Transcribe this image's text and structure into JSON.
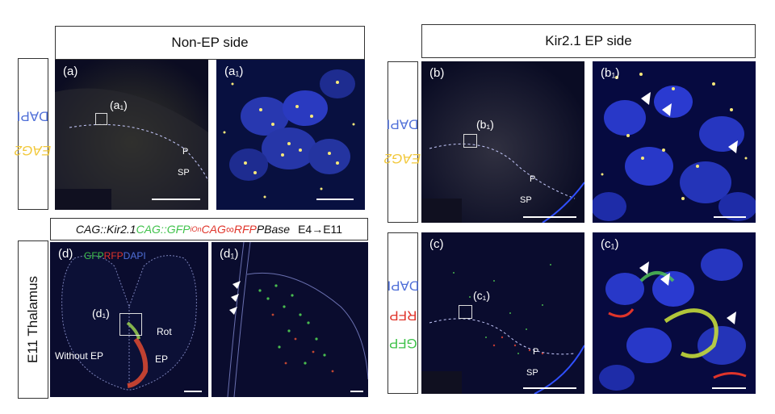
{
  "headers": {
    "non_ep": "Non-EP side",
    "kir_ep": "Kir2.1 EP side"
  },
  "row_labels": {
    "eag2_left": {
      "gene": "EAG2",
      "stain": "DAPI"
    },
    "eag2_right": {
      "gene": "EAG2",
      "stain": "DAPI"
    },
    "gfp_right": {
      "g": "GFP",
      "r": "RFP",
      "b": "DAPI"
    },
    "thalamus": "E11 Thalamus"
  },
  "genotype": {
    "part1": "CAG::Kir2.1",
    "part2": "CAG::GFP",
    "part2_sup": "iOn",
    "part3": "CAG∞RFP",
    "part4": "PBase",
    "stage": "E4→E11"
  },
  "panels": {
    "a": {
      "label": "(a)",
      "inset": "(a₁)",
      "region_p": "P",
      "region_sp": "SP"
    },
    "a1": {
      "label": "(a₁)"
    },
    "b": {
      "label": "(b)",
      "inset": "(b₁)",
      "region_p": "P",
      "region_sp": "SP"
    },
    "b1": {
      "label": "(b₁)"
    },
    "c": {
      "label": "(c)",
      "inset": "(c₁)",
      "region_p": "P",
      "region_sp": "SP"
    },
    "c1": {
      "label": "(c₁)"
    },
    "d": {
      "label": "(d)",
      "channels": {
        "g": "GFP",
        "r": "RFP",
        "b": "DAPI"
      },
      "inset": "(d₁)",
      "rot": "Rot",
      "ep": "EP",
      "without_ep": "Without EP"
    },
    "d1": {
      "label": "(d₁)"
    }
  },
  "colors": {
    "eag2_signal": "#f2c83a",
    "dapi": "#3b4fd6",
    "gfp": "#3fc24a",
    "rfp": "#e0342a",
    "background": "#06081e"
  }
}
